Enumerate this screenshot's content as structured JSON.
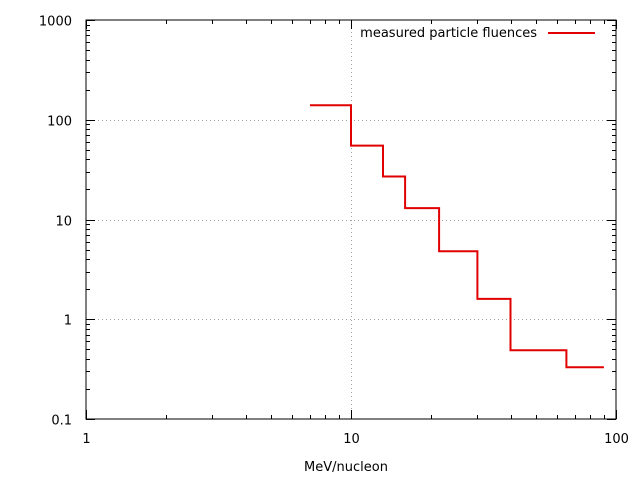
{
  "chart_data": {
    "type": "line",
    "step": true,
    "xscale": "log",
    "yscale": "log",
    "xlim": [
      1,
      100
    ],
    "ylim": [
      0.1,
      1000
    ],
    "xlabel": "MeV/nucleon",
    "ylabel": "",
    "title": "",
    "x_ticks": [
      "1",
      "10",
      "100"
    ],
    "y_ticks": [
      "0.1",
      "1",
      "10",
      "100",
      "1000"
    ],
    "grid": "dotted at major ticks",
    "legend_position": "top-right",
    "series": [
      {
        "name": "measured particle fluences",
        "color": "#e00000",
        "bins": [
          {
            "x_start": 7,
            "x_end": 10,
            "y": 140
          },
          {
            "x_start": 10,
            "x_end": 13.2,
            "y": 55
          },
          {
            "x_start": 13.2,
            "x_end": 16,
            "y": 27
          },
          {
            "x_start": 16,
            "x_end": 21.5,
            "y": 13
          },
          {
            "x_start": 21.5,
            "x_end": 30,
            "y": 4.8
          },
          {
            "x_start": 30,
            "x_end": 40,
            "y": 1.6
          },
          {
            "x_start": 40,
            "x_end": 65,
            "y": 0.49
          },
          {
            "x_start": 65,
            "x_end": 90,
            "y": 0.33
          }
        ]
      }
    ]
  }
}
